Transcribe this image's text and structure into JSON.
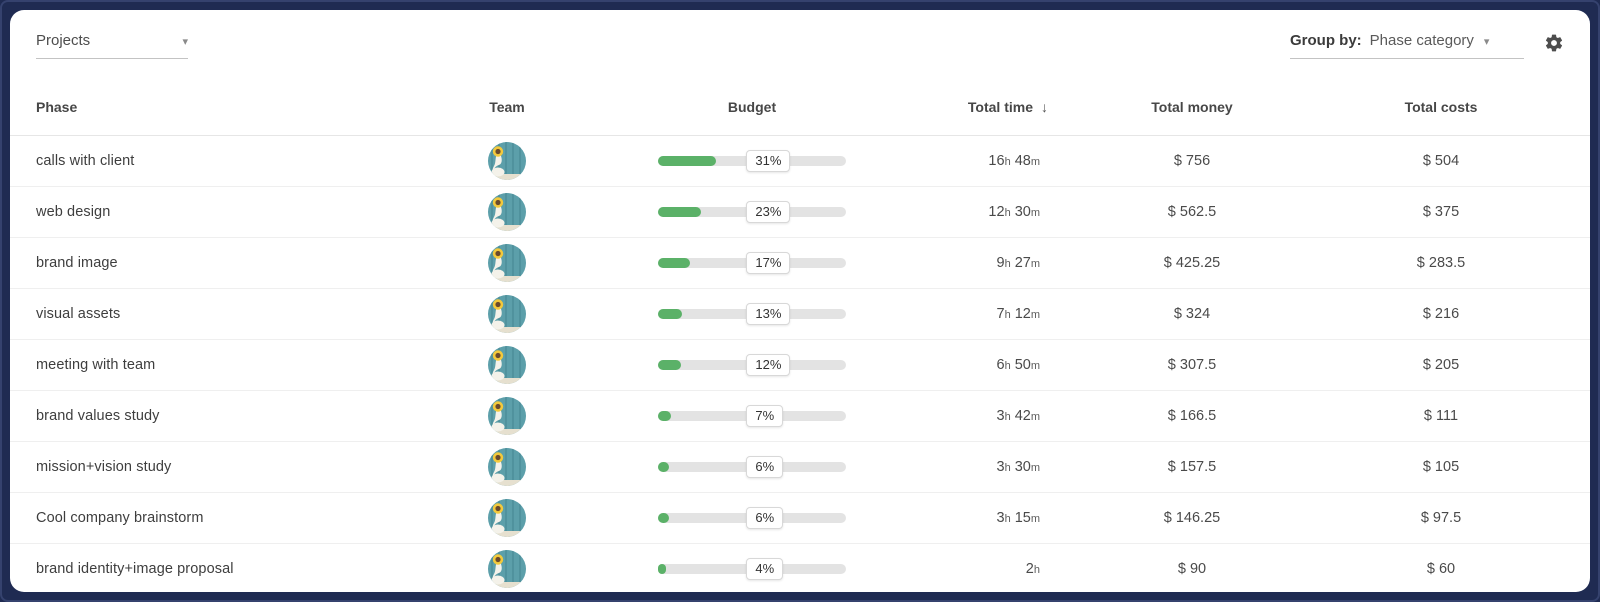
{
  "toolbar": {
    "projects_label": "Projects",
    "group_by_label": "Group by:",
    "group_by_value": "Phase category",
    "caret": "▾"
  },
  "table": {
    "columns": [
      {
        "label": "Phase"
      },
      {
        "label": "Team"
      },
      {
        "label": "Budget"
      },
      {
        "label": "Total time"
      },
      {
        "label": "Total money"
      },
      {
        "label": "Total costs"
      }
    ],
    "sort": {
      "column": "Total time",
      "direction": "descending",
      "arrow": "↓"
    },
    "rows": [
      {
        "phase": "calls with client",
        "budget_pct": 31,
        "time": "16h 48m",
        "money": "$ 756",
        "costs": "$ 504"
      },
      {
        "phase": "web design",
        "budget_pct": 23,
        "time": "12h 30m",
        "money": "$ 562.5",
        "costs": "$ 375"
      },
      {
        "phase": "brand image",
        "budget_pct": 17,
        "time": "9h 27m",
        "money": "$ 425.25",
        "costs": "$ 283.5"
      },
      {
        "phase": "visual assets",
        "budget_pct": 13,
        "time": "7h 12m",
        "money": "$ 324",
        "costs": "$ 216"
      },
      {
        "phase": "meeting with team",
        "budget_pct": 12,
        "time": "6h 50m",
        "money": "$ 307.5",
        "costs": "$ 205"
      },
      {
        "phase": "brand values study",
        "budget_pct": 7,
        "time": "3h 42m",
        "money": "$ 166.5",
        "costs": "$ 111"
      },
      {
        "phase": "mission+vision study",
        "budget_pct": 6,
        "time": "3h 30m",
        "money": "$ 157.5",
        "costs": "$ 105"
      },
      {
        "phase": "Cool company brainstorm",
        "budget_pct": 6,
        "time": "3h 15m",
        "money": "$ 146.25",
        "costs": "$ 97.5"
      },
      {
        "phase": "brand identity+image proposal",
        "budget_pct": 4,
        "time": "2h",
        "money": "$ 90",
        "costs": "$ 60"
      }
    ]
  },
  "colors": {
    "frame_navy": "#1f2b52",
    "accent_green": "#5bb168",
    "bar_track": "#e3e3e3",
    "badge_border": "#d8d8d8"
  },
  "icons": {
    "settings": "gear-icon",
    "sort": "arrow-down-icon",
    "dropdown": "caret-down-icon",
    "team_avatar": "teal-swan-sunflower-photo"
  }
}
